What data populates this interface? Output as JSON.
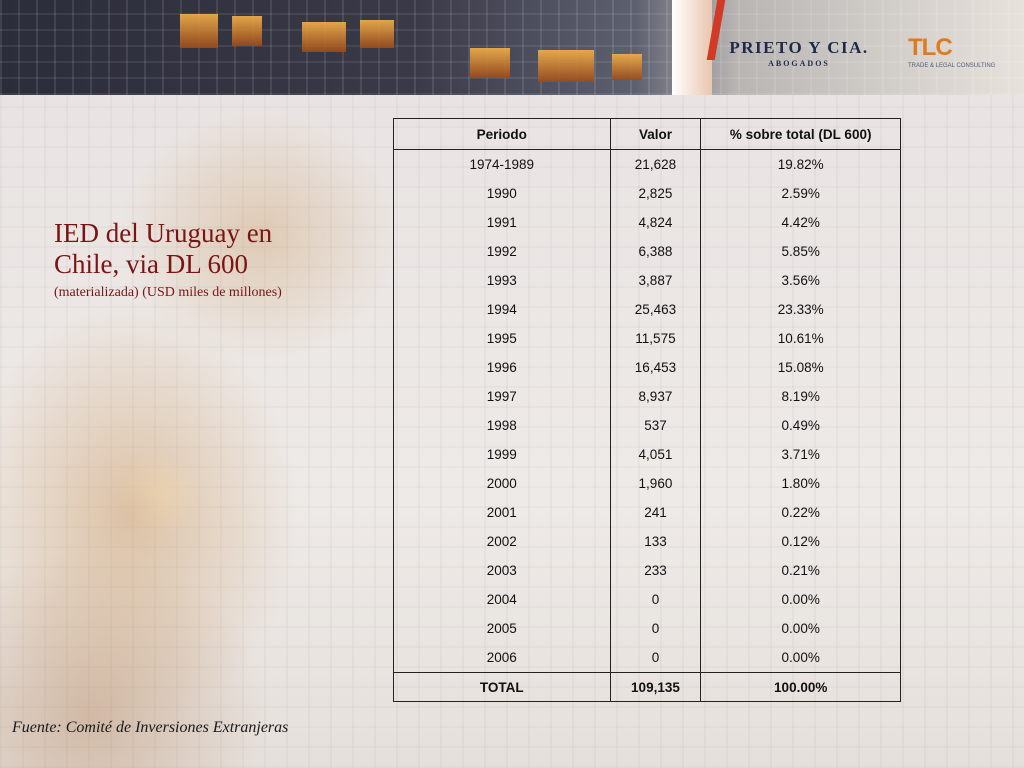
{
  "header": {
    "firm_name": "PRIETO Y CIA.",
    "firm_sub": "ABOGADOS",
    "tlc_mark": "TLC",
    "tlc_tagline": "TRADE & LEGAL CONSULTING"
  },
  "slide": {
    "title": "IED del Uruguay en Chile, via DL 600",
    "subtitle": "(materializada) (USD miles de millones)",
    "source": "Fuente: Comité de Inversiones Extranjeras"
  },
  "table": {
    "headers": [
      "Periodo",
      "Valor",
      "% sobre total (DL 600)"
    ],
    "rows": [
      [
        "1974-1989",
        "21,628",
        "19.82%"
      ],
      [
        "1990",
        "2,825",
        "2.59%"
      ],
      [
        "1991",
        "4,824",
        "4.42%"
      ],
      [
        "1992",
        "6,388",
        "5.85%"
      ],
      [
        "1993",
        "3,887",
        "3.56%"
      ],
      [
        "1994",
        "25,463",
        "23.33%"
      ],
      [
        "1995",
        "11,575",
        "10.61%"
      ],
      [
        "1996",
        "16,453",
        "15.08%"
      ],
      [
        "1997",
        "8,937",
        "8.19%"
      ],
      [
        "1998",
        "537",
        "0.49%"
      ],
      [
        "1999",
        "4,051",
        "3.71%"
      ],
      [
        "2000",
        "1,960",
        "1.80%"
      ],
      [
        "2001",
        "241",
        "0.22%"
      ],
      [
        "2002",
        "133",
        "0.12%"
      ],
      [
        "2003",
        "233",
        "0.21%"
      ],
      [
        "2004",
        "0",
        "0.00%"
      ],
      [
        "2005",
        "0",
        "0.00%"
      ],
      [
        "2006",
        "0",
        "0.00%"
      ]
    ],
    "total": [
      "TOTAL",
      "109,135",
      "100.00%"
    ]
  }
}
